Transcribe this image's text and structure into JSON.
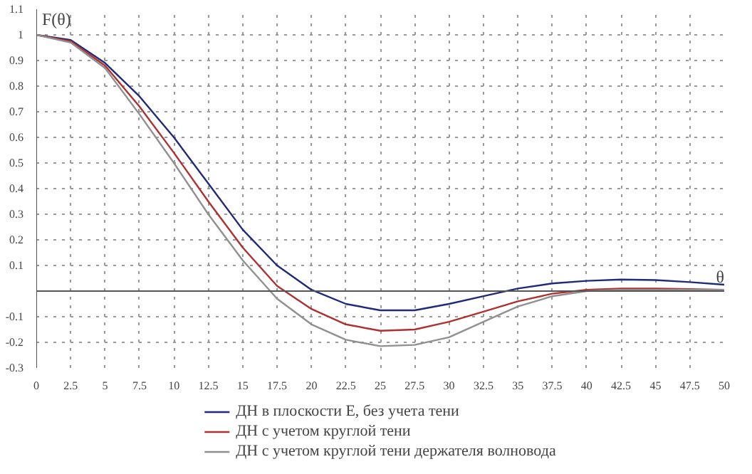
{
  "chart_data": {
    "type": "line",
    "xlabel": "θ",
    "ylabel": "F(θ)",
    "x": [
      0,
      2.5,
      5,
      7.5,
      10,
      12.5,
      15,
      17.5,
      20,
      22.5,
      25,
      27.5,
      30,
      32.5,
      35,
      37.5,
      40,
      42.5,
      45,
      47.5,
      50
    ],
    "series": [
      {
        "name": "ДН в плоскости E, без учета тени",
        "color": "#1f2a7a",
        "values": [
          1,
          0.98,
          0.89,
          0.76,
          0.6,
          0.42,
          0.24,
          0.1,
          0.005,
          -0.05,
          -0.075,
          -0.075,
          -0.05,
          -0.02,
          0.01,
          0.03,
          0.04,
          0.045,
          0.043,
          0.035,
          0.025
        ]
      },
      {
        "name": "ДН с учетом круглой тени",
        "color": "#b03030",
        "values": [
          1,
          0.975,
          0.88,
          0.72,
          0.54,
          0.35,
          0.17,
          0.02,
          -0.07,
          -0.13,
          -0.155,
          -0.15,
          -0.12,
          -0.08,
          -0.04,
          -0.01,
          0.005,
          0.01,
          0.01,
          0.008,
          0.005
        ]
      },
      {
        "name": "ДН с учетом круглой тени держателя волновода",
        "color": "#909090",
        "values": [
          1,
          0.97,
          0.87,
          0.69,
          0.5,
          0.3,
          0.12,
          -0.03,
          -0.13,
          -0.19,
          -0.215,
          -0.21,
          -0.18,
          -0.12,
          -0.06,
          -0.02,
          0.0,
          0.005,
          0.005,
          0.005,
          0.005
        ]
      }
    ],
    "xlim": [
      0,
      50
    ],
    "ylim": [
      -0.3,
      1.1
    ],
    "xticks": [
      0,
      2.5,
      5,
      7.5,
      10,
      12.5,
      15,
      17.5,
      20,
      22.5,
      25,
      27.5,
      30,
      32.5,
      35,
      37.5,
      40,
      42.5,
      45,
      47.5,
      50
    ],
    "yticks": [
      {
        "value": -0.3,
        "label": "-0.3"
      },
      {
        "value": -0.2,
        "label": "-0.2"
      },
      {
        "value": -0.1,
        "label": "-0.1"
      },
      {
        "value": 0,
        "label": null
      },
      0.1,
      0.2,
      0.3,
      0.4,
      0.5,
      0.6,
      0.7,
      0.8,
      0.9,
      1,
      1.1
    ],
    "grid": true,
    "legend": "bottom",
    "marker": "none",
    "line_style": "solid"
  }
}
